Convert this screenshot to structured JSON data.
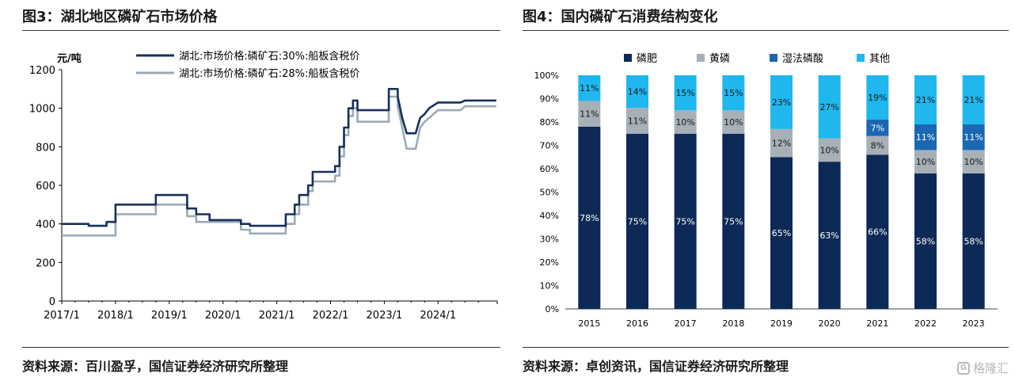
{
  "left": {
    "title": "图3：湖北地区磷矿石市场价格",
    "source": "资料来源：百川盈孚，国信证券经济研究所整理"
  },
  "right": {
    "title": "图4：国内磷矿石消费结构变化",
    "source": "资料来源：卓创资讯，国信证券经济研究所整理"
  },
  "watermark": "格隆汇",
  "chart_data": [
    {
      "type": "line",
      "unit_label": "元/吨",
      "ylim": [
        0,
        1200
      ],
      "yticks": [
        0,
        200,
        400,
        600,
        800,
        1000,
        1200
      ],
      "x_tick_labels": [
        "2017/1",
        "2018/1",
        "2019/1",
        "2020/1",
        "2021/1",
        "2022/1",
        "2023/1",
        "2024/1"
      ],
      "grid": false,
      "legend_position": "top",
      "series": [
        {
          "name": "湖北:市场价格:磷矿石:30%:船板含税价",
          "color": "#17305a",
          "points": [
            [
              "2017-01",
              400
            ],
            [
              "2017-07",
              400
            ],
            [
              "2017-07",
              390
            ],
            [
              "2017-11",
              390
            ],
            [
              "2017-11",
              410
            ],
            [
              "2018-01",
              410
            ],
            [
              "2018-01",
              500
            ],
            [
              "2018-10",
              500
            ],
            [
              "2018-10",
              550
            ],
            [
              "2019-05",
              550
            ],
            [
              "2019-05",
              480
            ],
            [
              "2019-07",
              480
            ],
            [
              "2019-07",
              450
            ],
            [
              "2019-10",
              450
            ],
            [
              "2019-10",
              420
            ],
            [
              "2020-05",
              420
            ],
            [
              "2020-05",
              400
            ],
            [
              "2020-07",
              400
            ],
            [
              "2020-07",
              390
            ],
            [
              "2021-03",
              390
            ],
            [
              "2021-03",
              450
            ],
            [
              "2021-05",
              450
            ],
            [
              "2021-05",
              500
            ],
            [
              "2021-06",
              500
            ],
            [
              "2021-06",
              550
            ],
            [
              "2021-08",
              550
            ],
            [
              "2021-08",
              600
            ],
            [
              "2021-09",
              600
            ],
            [
              "2021-09",
              670
            ],
            [
              "2022-02",
              670
            ],
            [
              "2022-02",
              700
            ],
            [
              "2022-03",
              700
            ],
            [
              "2022-03",
              800
            ],
            [
              "2022-04",
              800
            ],
            [
              "2022-04",
              900
            ],
            [
              "2022-05",
              900
            ],
            [
              "2022-05",
              1000
            ],
            [
              "2022-06",
              1000
            ],
            [
              "2022-06",
              1040
            ],
            [
              "2022-07",
              1040
            ],
            [
              "2022-07",
              990
            ],
            [
              "2023-02",
              990
            ],
            [
              "2023-02",
              1100
            ],
            [
              "2023-04",
              1100
            ],
            [
              "2023-04",
              1060
            ],
            [
              "2023-05",
              950
            ],
            [
              "2023-06",
              870
            ],
            [
              "2023-08",
              870
            ],
            [
              "2023-09",
              950
            ],
            [
              "2023-10",
              970
            ],
            [
              "2023-11",
              1000
            ],
            [
              "2024-01",
              1030
            ],
            [
              "2024-06",
              1030
            ],
            [
              "2024-07",
              1040
            ],
            [
              "2025-02",
              1040
            ]
          ]
        },
        {
          "name": "湖北:市场价格:磷矿石:28%:船板含税价",
          "color": "#9aaab8",
          "points": [
            [
              "2017-01",
              340
            ],
            [
              "2018-01",
              340
            ],
            [
              "2018-01",
              450
            ],
            [
              "2018-10",
              450
            ],
            [
              "2018-10",
              500
            ],
            [
              "2019-05",
              500
            ],
            [
              "2019-05",
              440
            ],
            [
              "2019-07",
              440
            ],
            [
              "2019-07",
              410
            ],
            [
              "2020-05",
              410
            ],
            [
              "2020-05",
              370
            ],
            [
              "2020-07",
              370
            ],
            [
              "2020-07",
              350
            ],
            [
              "2021-03",
              350
            ],
            [
              "2021-03",
              400
            ],
            [
              "2021-05",
              400
            ],
            [
              "2021-05",
              450
            ],
            [
              "2021-06",
              450
            ],
            [
              "2021-06",
              500
            ],
            [
              "2021-08",
              500
            ],
            [
              "2021-08",
              570
            ],
            [
              "2021-09",
              570
            ],
            [
              "2021-09",
              620
            ],
            [
              "2022-02",
              620
            ],
            [
              "2022-02",
              650
            ],
            [
              "2022-03",
              650
            ],
            [
              "2022-03",
              750
            ],
            [
              "2022-04",
              750
            ],
            [
              "2022-04",
              860
            ],
            [
              "2022-05",
              860
            ],
            [
              "2022-05",
              960
            ],
            [
              "2022-06",
              960
            ],
            [
              "2022-06",
              1000
            ],
            [
              "2022-07",
              1000
            ],
            [
              "2022-07",
              930
            ],
            [
              "2023-02",
              930
            ],
            [
              "2023-02",
              1060
            ],
            [
              "2023-04",
              1060
            ],
            [
              "2023-04",
              1010
            ],
            [
              "2023-05",
              900
            ],
            [
              "2023-06",
              790
            ],
            [
              "2023-08",
              790
            ],
            [
              "2023-09",
              900
            ],
            [
              "2023-10",
              930
            ],
            [
              "2023-11",
              950
            ],
            [
              "2024-01",
              990
            ],
            [
              "2024-06",
              990
            ],
            [
              "2024-07",
              1010
            ],
            [
              "2025-02",
              1010
            ]
          ]
        }
      ]
    },
    {
      "type": "bar",
      "stacked": true,
      "categories": [
        "2015",
        "2016",
        "2017",
        "2018",
        "2019",
        "2020",
        "2021",
        "2022",
        "2023"
      ],
      "ylim": [
        0,
        100
      ],
      "ytick_labels": [
        "0%",
        "10%",
        "20%",
        "30%",
        "40%",
        "50%",
        "60%",
        "70%",
        "80%",
        "90%",
        "100%"
      ],
      "legend_position": "top",
      "series": [
        {
          "name": "磷肥",
          "color": "#0c2a55",
          "text_color": "#ffffff",
          "values": [
            78,
            75,
            75,
            75,
            65,
            63,
            66,
            58,
            58
          ]
        },
        {
          "name": "黄磷",
          "color": "#a7afb7",
          "text_color": "#1a1a1a",
          "values": [
            11,
            11,
            10,
            10,
            12,
            10,
            8,
            10,
            10
          ]
        },
        {
          "name": "湿法磷酸",
          "color": "#1a68b2",
          "text_color": "#ffffff",
          "values": [
            0,
            0,
            0,
            0,
            0,
            0,
            7,
            11,
            11
          ]
        },
        {
          "name": "其他",
          "color": "#1fb7ee",
          "text_color": "#1a1a1a",
          "values": [
            11,
            14,
            15,
            15,
            23,
            27,
            19,
            21,
            21
          ]
        }
      ]
    }
  ]
}
